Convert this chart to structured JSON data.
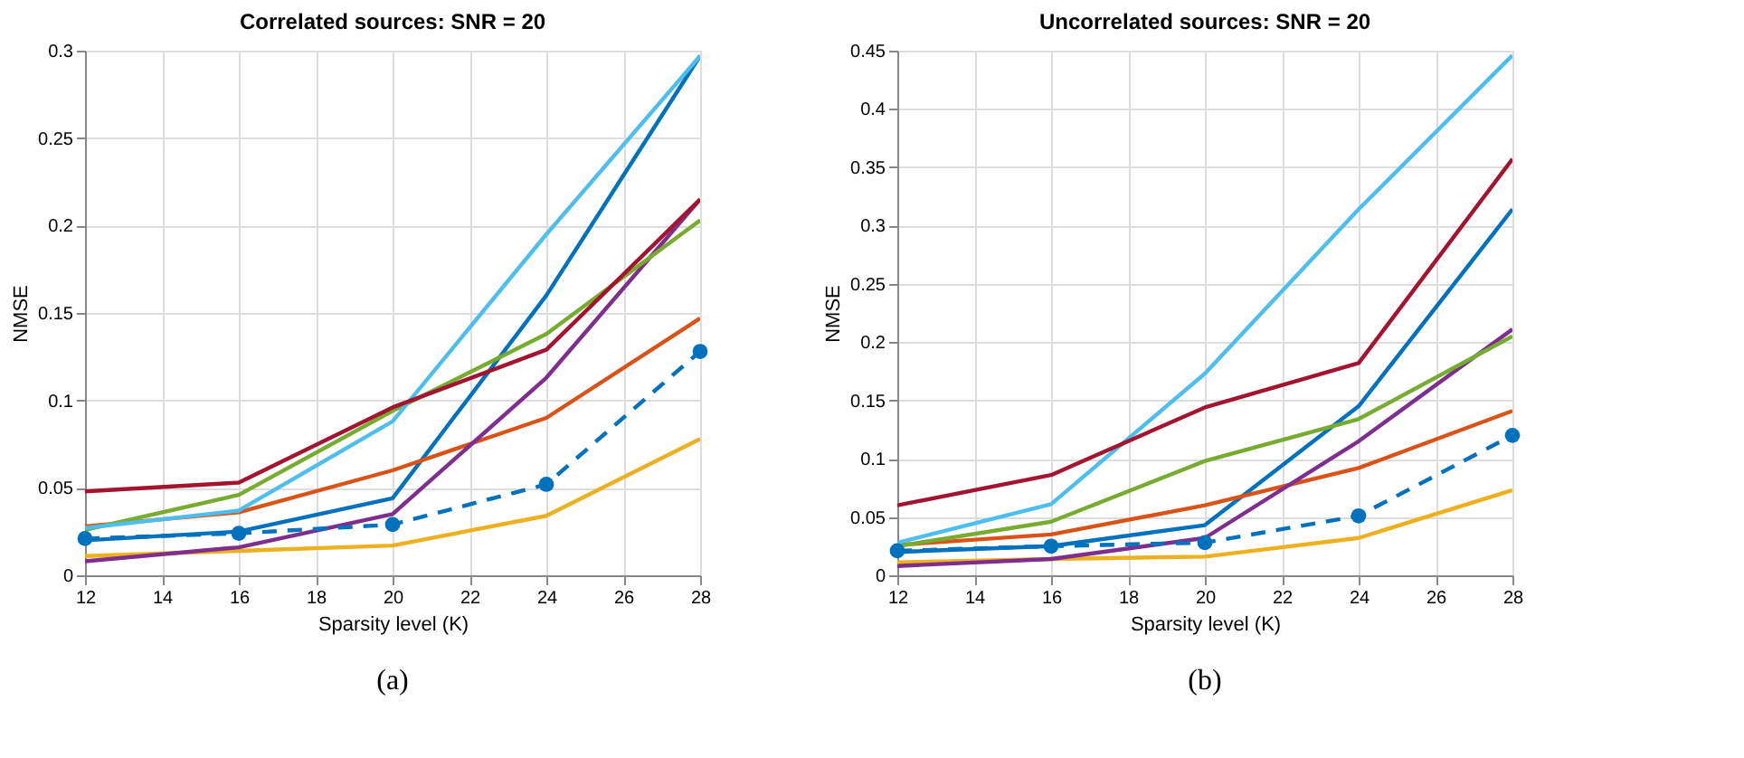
{
  "chart_data": [
    {
      "type": "line",
      "title": "Correlated sources: SNR = 20",
      "xlabel": "Sparsity level (K)",
      "ylabel": "NMSE",
      "annotations": [
        "(a)"
      ],
      "x": [
        12,
        16,
        20,
        24,
        28
      ],
      "xlim": [
        12,
        28
      ],
      "xticks": [
        12,
        14,
        16,
        18,
        20,
        22,
        24,
        26,
        28
      ],
      "ylim": [
        0,
        0.3
      ],
      "yticks": [
        0,
        0.05,
        0.1,
        0.15,
        0.2,
        0.25,
        0.3
      ],
      "grid": true,
      "marker": "none",
      "line_style": "solid",
      "series": [
        {
          "color": "#0072bd",
          "values": [
            0.02,
            0.025,
            0.044,
            0.16,
            0.297
          ]
        },
        {
          "color": "#d95319",
          "values": [
            0.028,
            0.036,
            0.06,
            0.09,
            0.147
          ]
        },
        {
          "color": "#edb120",
          "values": [
            0.011,
            0.014,
            0.017,
            0.034,
            0.078
          ]
        },
        {
          "color": "#7e2f8e",
          "values": [
            0.008,
            0.016,
            0.035,
            0.113,
            0.215
          ]
        },
        {
          "color": "#77ac30",
          "values": [
            0.026,
            0.046,
            0.094,
            0.138,
            0.203
          ]
        },
        {
          "color": "#4dbeee",
          "values": [
            0.027,
            0.037,
            0.088,
            0.195,
            0.297
          ]
        },
        {
          "color": "#a2142f",
          "values": [
            0.048,
            0.053,
            0.096,
            0.129,
            0.215
          ]
        },
        {
          "color": "#0072bd",
          "values": [
            0.021,
            0.024,
            0.029,
            0.052,
            0.128
          ],
          "line_style": "dashed",
          "marker": "circle"
        }
      ]
    },
    {
      "type": "line",
      "title": "Uncorrelated sources: SNR = 20",
      "xlabel": "Sparsity level (K)",
      "ylabel": "NMSE",
      "annotations": [
        "(b)"
      ],
      "x": [
        12,
        16,
        20,
        24,
        28
      ],
      "xlim": [
        12,
        28
      ],
      "xticks": [
        12,
        14,
        16,
        18,
        20,
        22,
        24,
        26,
        28
      ],
      "ylim": [
        0,
        0.45
      ],
      "yticks": [
        0,
        0.05,
        0.1,
        0.15,
        0.2,
        0.25,
        0.3,
        0.35,
        0.4,
        0.45
      ],
      "grid": true,
      "marker": "none",
      "line_style": "solid",
      "series": [
        {
          "color": "#0072bd",
          "values": [
            0.02,
            0.025,
            0.043,
            0.145,
            0.314
          ]
        },
        {
          "color": "#d95319",
          "values": [
            0.026,
            0.035,
            0.06,
            0.092,
            0.141
          ]
        },
        {
          "color": "#edb120",
          "values": [
            0.011,
            0.014,
            0.016,
            0.032,
            0.073
          ]
        },
        {
          "color": "#7e2f8e",
          "values": [
            0.008,
            0.014,
            0.032,
            0.115,
            0.211
          ]
        },
        {
          "color": "#77ac30",
          "values": [
            0.025,
            0.046,
            0.098,
            0.134,
            0.205
          ]
        },
        {
          "color": "#4dbeee",
          "values": [
            0.028,
            0.061,
            0.173,
            0.314,
            0.446
          ]
        },
        {
          "color": "#a2142f",
          "values": [
            0.06,
            0.086,
            0.144,
            0.182,
            0.357
          ]
        },
        {
          "color": "#0072bd",
          "values": [
            0.021,
            0.025,
            0.028,
            0.051,
            0.12
          ],
          "line_style": "dashed",
          "marker": "circle"
        }
      ]
    }
  ]
}
